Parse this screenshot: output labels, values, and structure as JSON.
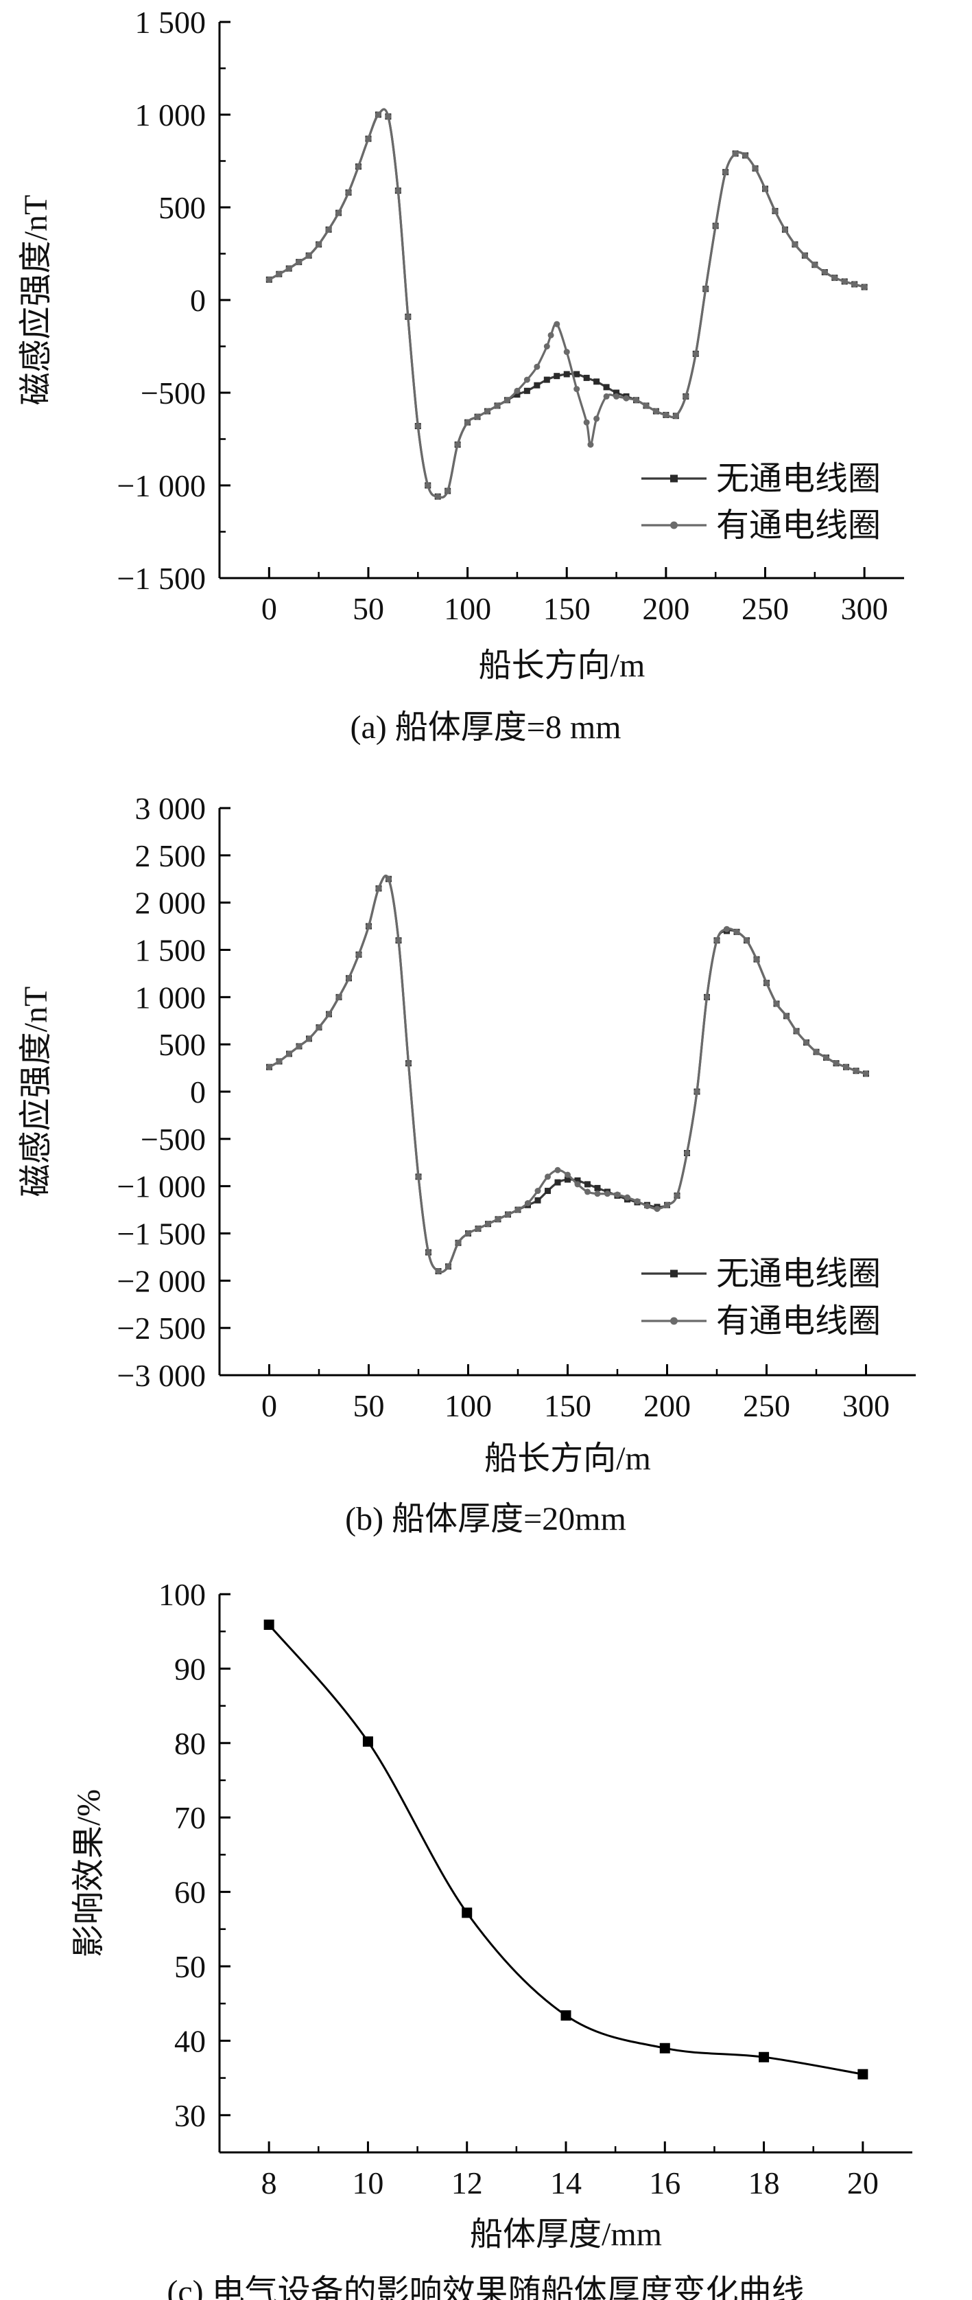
{
  "chart_data": [
    {
      "type": "line",
      "caption": "(a) 船体厚度=8 mm",
      "xlabel": "船长方向/m",
      "ylabel": "磁感应强度/nT",
      "xlim": [
        -25,
        320
      ],
      "ylim": [
        -1500,
        1500
      ],
      "xticks": [
        0,
        50,
        100,
        150,
        200,
        250,
        300
      ],
      "xtick_labels": [
        "0",
        "50",
        "100",
        "150",
        "200",
        "250",
        "300"
      ],
      "yticks": [
        1500,
        1000,
        500,
        0,
        -500,
        -1000,
        -1500
      ],
      "ytick_labels": [
        "1 500",
        "1 000",
        "500",
        "0",
        "−500",
        "−1 000",
        "−1 500"
      ],
      "legend_position": "bottom-right",
      "series": [
        {
          "name": "无通电线圈",
          "marker": "square",
          "x": [
            0,
            5,
            10,
            15,
            20,
            25,
            30,
            35,
            40,
            45,
            50,
            55,
            60,
            65,
            70,
            75,
            80,
            85,
            90,
            95,
            100,
            105,
            110,
            115,
            120,
            125,
            130,
            135,
            140,
            145,
            150,
            155,
            160,
            165,
            170,
            175,
            180,
            185,
            190,
            195,
            200,
            205,
            210,
            215,
            220,
            225,
            230,
            235,
            240,
            245,
            250,
            255,
            260,
            265,
            270,
            275,
            280,
            285,
            290,
            295,
            300
          ],
          "values": [
            110,
            140,
            170,
            205,
            240,
            300,
            380,
            470,
            580,
            720,
            870,
            1000,
            990,
            590,
            -90,
            -680,
            -1000,
            -1060,
            -1030,
            -780,
            -660,
            -630,
            -600,
            -570,
            -540,
            -510,
            -490,
            -460,
            -430,
            -410,
            -400,
            -400,
            -420,
            -440,
            -470,
            -500,
            -520,
            -540,
            -570,
            -600,
            -620,
            -625,
            -520,
            -290,
            60,
            400,
            690,
            790,
            780,
            710,
            600,
            480,
            380,
            300,
            240,
            190,
            150,
            120,
            100,
            85,
            70
          ]
        },
        {
          "name": "有通电线圈",
          "marker": "circle",
          "x": [
            0,
            5,
            10,
            15,
            20,
            25,
            30,
            35,
            40,
            45,
            50,
            55,
            60,
            65,
            70,
            75,
            80,
            85,
            90,
            95,
            100,
            105,
            110,
            115,
            120,
            125,
            130,
            135,
            140,
            142,
            145,
            150,
            155,
            160,
            162,
            165,
            170,
            175,
            180,
            185,
            190,
            195,
            200,
            205,
            210,
            215,
            220,
            225,
            230,
            235,
            240,
            245,
            250,
            255,
            260,
            265,
            270,
            275,
            280,
            285,
            290,
            295,
            300
          ],
          "values": [
            110,
            140,
            170,
            205,
            240,
            300,
            380,
            470,
            580,
            720,
            870,
            1000,
            990,
            590,
            -90,
            -680,
            -1000,
            -1060,
            -1030,
            -780,
            -660,
            -630,
            -600,
            -570,
            -540,
            -490,
            -430,
            -360,
            -250,
            -190,
            -130,
            -280,
            -480,
            -660,
            -780,
            -640,
            -520,
            -520,
            -530,
            -540,
            -570,
            -600,
            -620,
            -625,
            -520,
            -290,
            60,
            400,
            690,
            790,
            780,
            710,
            600,
            480,
            380,
            300,
            240,
            190,
            150,
            120,
            100,
            85,
            70
          ]
        }
      ]
    },
    {
      "type": "line",
      "caption": "(b) 船体厚度=20mm",
      "xlabel": "船长方向/m",
      "ylabel": "磁感应强度/nT",
      "xlim": [
        -25,
        325
      ],
      "ylim": [
        -3000,
        3000
      ],
      "xticks": [
        0,
        50,
        100,
        150,
        200,
        250,
        300
      ],
      "xtick_labels": [
        "0",
        "50",
        "100",
        "150",
        "200",
        "250",
        "300"
      ],
      "yticks": [
        3000,
        2500,
        2000,
        1500,
        1000,
        500,
        0,
        -500,
        -1000,
        -1500,
        -2000,
        -2500,
        -3000
      ],
      "ytick_labels": [
        "3 000",
        "2 500",
        "2 000",
        "1 500",
        "1 000",
        "500",
        "0",
        "−500",
        "−1 000",
        "−1 500",
        "−2 000",
        "−2 500",
        "−3 000"
      ],
      "legend_position": "bottom-right",
      "series": [
        {
          "name": "无通电线圈",
          "marker": "square",
          "x": [
            0,
            5,
            10,
            15,
            20,
            25,
            30,
            35,
            40,
            45,
            50,
            55,
            60,
            65,
            70,
            75,
            80,
            85,
            90,
            95,
            100,
            105,
            110,
            115,
            120,
            125,
            130,
            135,
            140,
            145,
            150,
            155,
            160,
            165,
            170,
            175,
            180,
            185,
            190,
            195,
            200,
            205,
            210,
            215,
            220,
            225,
            230,
            235,
            240,
            245,
            250,
            255,
            260,
            265,
            270,
            275,
            280,
            285,
            290,
            295,
            300
          ],
          "values": [
            260,
            320,
            400,
            480,
            560,
            680,
            820,
            1000,
            1200,
            1450,
            1750,
            2150,
            2250,
            1600,
            300,
            -900,
            -1700,
            -1900,
            -1850,
            -1600,
            -1500,
            -1450,
            -1400,
            -1350,
            -1300,
            -1250,
            -1200,
            -1150,
            -1050,
            -960,
            -930,
            -940,
            -980,
            -1020,
            -1060,
            -1100,
            -1140,
            -1170,
            -1200,
            -1220,
            -1200,
            -1100,
            -650,
            0,
            1000,
            1600,
            1700,
            1690,
            1600,
            1400,
            1150,
            930,
            800,
            640,
            520,
            420,
            360,
            300,
            260,
            220,
            190
          ]
        },
        {
          "name": "有通电线圈",
          "marker": "circle",
          "x": [
            0,
            5,
            10,
            15,
            20,
            25,
            30,
            35,
            40,
            45,
            50,
            55,
            60,
            65,
            70,
            75,
            80,
            85,
            90,
            95,
            100,
            105,
            110,
            115,
            120,
            125,
            130,
            135,
            140,
            145,
            150,
            155,
            160,
            165,
            170,
            175,
            180,
            185,
            190,
            195,
            200,
            205,
            210,
            215,
            220,
            225,
            230,
            235,
            240,
            245,
            250,
            255,
            260,
            265,
            270,
            275,
            280,
            285,
            290,
            295,
            300
          ],
          "values": [
            260,
            320,
            400,
            480,
            560,
            680,
            820,
            1000,
            1200,
            1450,
            1750,
            2150,
            2250,
            1600,
            300,
            -900,
            -1700,
            -1900,
            -1850,
            -1600,
            -1500,
            -1450,
            -1400,
            -1350,
            -1300,
            -1250,
            -1180,
            -1050,
            -900,
            -830,
            -880,
            -980,
            -1060,
            -1080,
            -1080,
            -1090,
            -1120,
            -1160,
            -1210,
            -1240,
            -1200,
            -1100,
            -650,
            0,
            1000,
            1600,
            1720,
            1690,
            1600,
            1400,
            1150,
            930,
            800,
            640,
            520,
            420,
            360,
            300,
            260,
            220,
            190
          ]
        }
      ]
    },
    {
      "type": "line",
      "caption": "(c) 电气设备的影响效果随船体厚度变化曲线",
      "xlabel": "船体厚度/mm",
      "ylabel": "影响效果/%",
      "xlim": [
        7,
        21
      ],
      "ylim": [
        25,
        100
      ],
      "xticks": [
        8,
        10,
        12,
        14,
        16,
        18,
        20
      ],
      "xtick_labels": [
        "8",
        "10",
        "12",
        "14",
        "16",
        "18",
        "20"
      ],
      "yticks": [
        100,
        90,
        80,
        70,
        60,
        50,
        40,
        30
      ],
      "ytick_labels": [
        "100",
        "90",
        "80",
        "70",
        "60",
        "50",
        "40",
        "30"
      ],
      "series": [
        {
          "marker": "square",
          "x": [
            8,
            10,
            12,
            14,
            16,
            18,
            20
          ],
          "values": [
            95.9,
            80.2,
            57.2,
            43.4,
            39.0,
            37.8,
            35.5
          ]
        }
      ]
    }
  ]
}
